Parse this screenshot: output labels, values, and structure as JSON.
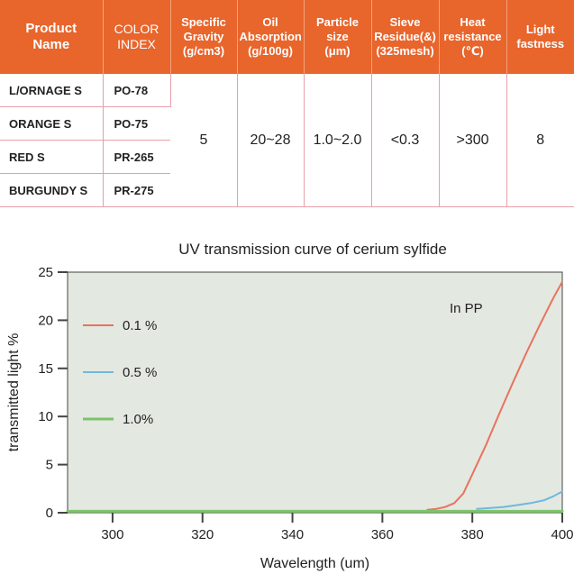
{
  "table": {
    "headers": [
      {
        "text": "Product\nName",
        "style": "big"
      },
      {
        "text": "COLOR\nINDEX",
        "style": "mid"
      },
      {
        "text": "Specific\nGravity\n(g/cm3)",
        "style": ""
      },
      {
        "text": "Oil\nAbsorption\n(g/100g)",
        "style": ""
      },
      {
        "text": "Particle\nsize\n(μm)",
        "style": ""
      },
      {
        "text": "Sieve\nResidue(&)\n(325mesh)",
        "style": ""
      },
      {
        "text": "Heat\nresistance\n(℃)",
        "style": ""
      },
      {
        "text": "Light\nfastness",
        "style": ""
      }
    ],
    "rows": [
      {
        "name": "L/ORNAGE S",
        "index": "PO-78"
      },
      {
        "name": "ORANGE S",
        "index": "PO-75"
      },
      {
        "name": "RED S",
        "index": "PR-265"
      },
      {
        "name": "BURGUNDY  S",
        "index": "PR-275"
      }
    ],
    "shared_values": {
      "specific_gravity": "5",
      "oil_absorption": "20~28",
      "particle_size": "1.0~2.0",
      "sieve_residue": "<0.3",
      "heat_resistance": ">300",
      "light_fastness": "8"
    }
  },
  "colors": {
    "header_bg": "#e8652c",
    "plot_bg": "#e3e8e1",
    "series_0_1": "#e8735e",
    "series_0_5": "#6fb8de",
    "series_1_0": "#7cc46a"
  },
  "chart_data": {
    "type": "line",
    "title": "UV transmission curve of cerium sylfide",
    "xlabel": "Wavelength (um)",
    "ylabel": "transmitted light  %",
    "xlim": [
      290,
      400
    ],
    "ylim": [
      0,
      25
    ],
    "xticks": [
      300,
      320,
      340,
      360,
      380,
      400
    ],
    "yticks": [
      0,
      5,
      10,
      15,
      20,
      25
    ],
    "grid": false,
    "legend": "left",
    "annotation": "In PP",
    "series": [
      {
        "name": "0.1 %",
        "color": "#e8735e",
        "x": [
          370,
          372,
          374,
          376,
          378,
          380,
          383,
          386,
          389,
          392,
          395,
          398,
          400
        ],
        "y": [
          0.3,
          0.4,
          0.6,
          1.0,
          2.0,
          4.0,
          7.0,
          10.3,
          13.5,
          16.6,
          19.5,
          22.3,
          24.0
        ]
      },
      {
        "name": "0.5 %",
        "color": "#6fb8de",
        "x": [
          381,
          384,
          387,
          390,
          393,
          396,
          398,
          400
        ],
        "y": [
          0.4,
          0.5,
          0.6,
          0.8,
          1.0,
          1.3,
          1.7,
          2.2
        ]
      },
      {
        "name": "1.0%",
        "color": "#7cc46a",
        "x": [
          290,
          400
        ],
        "y": [
          0.15,
          0.15
        ]
      }
    ]
  }
}
